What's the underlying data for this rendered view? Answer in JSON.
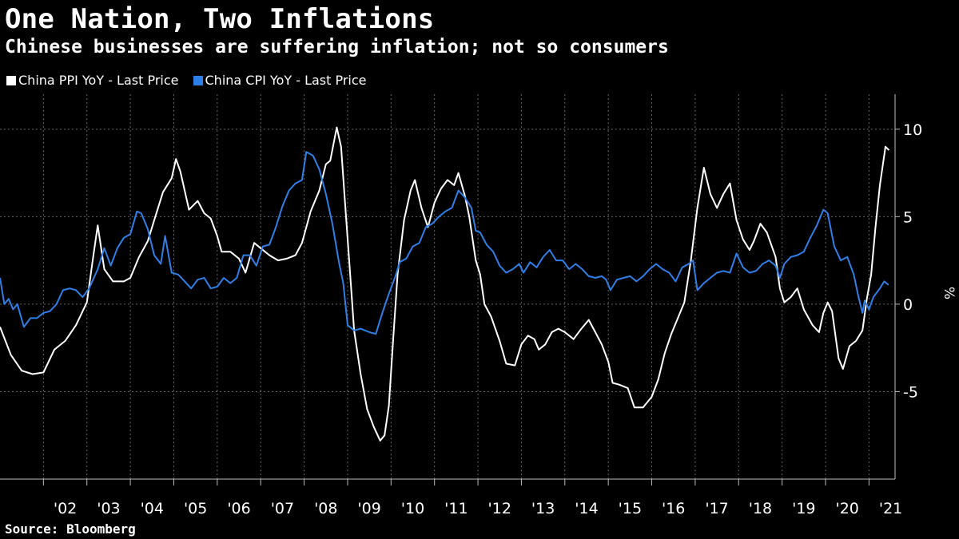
{
  "title": "One Nation, Two Inflations",
  "subtitle": "Chinese businesses are suffering inflation; not so consumers",
  "source": "Source: Bloomberg",
  "colors": {
    "background": "#000000",
    "ppi": "#ffffff",
    "cpi": "#2f7fe8",
    "grid": "#666666"
  },
  "chart_data": {
    "type": "line",
    "ylabel": "%",
    "ylim": [
      -10,
      12
    ],
    "yticks": [
      -5,
      0,
      5,
      10
    ],
    "xlim": [
      2001.0,
      2021.6
    ],
    "xtick_labels": [
      "'02",
      "'03",
      "'04",
      "'05",
      "'06",
      "'07",
      "'08",
      "'09",
      "'10",
      "'11",
      "'12",
      "'13",
      "'14",
      "'15",
      "'16",
      "'17",
      "'18",
      "'19",
      "'20",
      "'21"
    ],
    "grid": true,
    "legend_position": "top-left",
    "series": [
      {
        "name": "China PPI YoY - Last Price",
        "color": "#ffffff",
        "points": [
          [
            2001.0,
            -1.3
          ],
          [
            2001.25,
            -2.9
          ],
          [
            2001.5,
            -3.8
          ],
          [
            2001.75,
            -4.0
          ],
          [
            2002.0,
            -3.9
          ],
          [
            2002.25,
            -2.6
          ],
          [
            2002.5,
            -2.1
          ],
          [
            2002.75,
            -1.2
          ],
          [
            2003.0,
            0.1
          ],
          [
            2003.15,
            2.8
          ],
          [
            2003.25,
            4.5
          ],
          [
            2003.4,
            2.0
          ],
          [
            2003.6,
            1.3
          ],
          [
            2003.85,
            1.3
          ],
          [
            2004.0,
            1.5
          ],
          [
            2004.2,
            2.7
          ],
          [
            2004.4,
            3.6
          ],
          [
            2004.55,
            4.8
          ],
          [
            2004.75,
            6.4
          ],
          [
            2004.95,
            7.2
          ],
          [
            2005.05,
            8.3
          ],
          [
            2005.15,
            7.6
          ],
          [
            2005.35,
            5.4
          ],
          [
            2005.55,
            5.9
          ],
          [
            2005.7,
            5.2
          ],
          [
            2005.85,
            4.9
          ],
          [
            2006.0,
            3.9
          ],
          [
            2006.1,
            3.0
          ],
          [
            2006.3,
            3.0
          ],
          [
            2006.5,
            2.6
          ],
          [
            2006.65,
            1.8
          ],
          [
            2006.85,
            3.5
          ],
          [
            2007.0,
            3.2
          ],
          [
            2007.2,
            2.8
          ],
          [
            2007.4,
            2.5
          ],
          [
            2007.6,
            2.6
          ],
          [
            2007.8,
            2.8
          ],
          [
            2007.95,
            3.5
          ],
          [
            2008.15,
            5.3
          ],
          [
            2008.35,
            6.5
          ],
          [
            2008.5,
            8.0
          ],
          [
            2008.6,
            8.2
          ],
          [
            2008.75,
            10.1
          ],
          [
            2008.85,
            9.0
          ],
          [
            2008.95,
            5.5
          ],
          [
            2009.05,
            2.0
          ],
          [
            2009.15,
            -1.5
          ],
          [
            2009.3,
            -4.0
          ],
          [
            2009.45,
            -6.0
          ],
          [
            2009.6,
            -7.0
          ],
          [
            2009.75,
            -7.8
          ],
          [
            2009.85,
            -7.5
          ],
          [
            2009.95,
            -5.8
          ],
          [
            2010.05,
            -2.0
          ],
          [
            2010.15,
            1.7
          ],
          [
            2010.3,
            4.8
          ],
          [
            2010.45,
            6.5
          ],
          [
            2010.55,
            7.1
          ],
          [
            2010.7,
            5.5
          ],
          [
            2010.85,
            4.4
          ],
          [
            2011.0,
            5.8
          ],
          [
            2011.15,
            6.6
          ],
          [
            2011.3,
            7.1
          ],
          [
            2011.45,
            6.8
          ],
          [
            2011.55,
            7.5
          ],
          [
            2011.7,
            6.2
          ],
          [
            2011.8,
            5.0
          ],
          [
            2011.95,
            2.5
          ],
          [
            2012.05,
            1.7
          ],
          [
            2012.15,
            0.0
          ],
          [
            2012.3,
            -0.7
          ],
          [
            2012.5,
            -2.1
          ],
          [
            2012.65,
            -3.4
          ],
          [
            2012.85,
            -3.5
          ],
          [
            2013.0,
            -2.3
          ],
          [
            2013.15,
            -1.8
          ],
          [
            2013.3,
            -2.0
          ],
          [
            2013.4,
            -2.6
          ],
          [
            2013.55,
            -2.3
          ],
          [
            2013.7,
            -1.6
          ],
          [
            2013.85,
            -1.4
          ],
          [
            2014.0,
            -1.6
          ],
          [
            2014.2,
            -2.0
          ],
          [
            2014.35,
            -1.5
          ],
          [
            2014.55,
            -0.9
          ],
          [
            2014.7,
            -1.6
          ],
          [
            2014.85,
            -2.3
          ],
          [
            2015.0,
            -3.3
          ],
          [
            2015.1,
            -4.5
          ],
          [
            2015.25,
            -4.6
          ],
          [
            2015.45,
            -4.8
          ],
          [
            2015.6,
            -5.9
          ],
          [
            2015.8,
            -5.9
          ],
          [
            2016.0,
            -5.3
          ],
          [
            2016.15,
            -4.3
          ],
          [
            2016.3,
            -2.8
          ],
          [
            2016.45,
            -1.7
          ],
          [
            2016.6,
            -0.8
          ],
          [
            2016.75,
            0.1
          ],
          [
            2016.9,
            2.5
          ],
          [
            2017.05,
            5.5
          ],
          [
            2017.2,
            7.8
          ],
          [
            2017.35,
            6.3
          ],
          [
            2017.5,
            5.5
          ],
          [
            2017.65,
            6.3
          ],
          [
            2017.8,
            6.9
          ],
          [
            2017.95,
            4.8
          ],
          [
            2018.1,
            3.7
          ],
          [
            2018.25,
            3.1
          ],
          [
            2018.35,
            3.6
          ],
          [
            2018.5,
            4.6
          ],
          [
            2018.65,
            4.1
          ],
          [
            2018.85,
            2.7
          ],
          [
            2018.95,
            0.9
          ],
          [
            2019.05,
            0.1
          ],
          [
            2019.2,
            0.4
          ],
          [
            2019.35,
            0.9
          ],
          [
            2019.5,
            -0.3
          ],
          [
            2019.7,
            -1.2
          ],
          [
            2019.85,
            -1.6
          ],
          [
            2019.95,
            -0.5
          ],
          [
            2020.05,
            0.1
          ],
          [
            2020.15,
            -0.4
          ],
          [
            2020.3,
            -3.1
          ],
          [
            2020.4,
            -3.7
          ],
          [
            2020.55,
            -2.4
          ],
          [
            2020.7,
            -2.1
          ],
          [
            2020.85,
            -1.5
          ],
          [
            2020.95,
            0.3
          ],
          [
            2021.05,
            1.7
          ],
          [
            2021.15,
            4.4
          ],
          [
            2021.25,
            6.8
          ],
          [
            2021.38,
            9.0
          ],
          [
            2021.46,
            8.8
          ]
        ]
      },
      {
        "name": "China CPI YoY - Last Price",
        "color": "#2f7fe8",
        "points": [
          [
            2001.0,
            1.5
          ],
          [
            2001.1,
            0.0
          ],
          [
            2001.2,
            0.3
          ],
          [
            2001.3,
            -0.3
          ],
          [
            2001.4,
            0.0
          ],
          [
            2001.55,
            -1.3
          ],
          [
            2001.7,
            -0.8
          ],
          [
            2001.85,
            -0.8
          ],
          [
            2002.0,
            -0.5
          ],
          [
            2002.15,
            -0.4
          ],
          [
            2002.3,
            0.0
          ],
          [
            2002.45,
            0.8
          ],
          [
            2002.6,
            0.9
          ],
          [
            2002.75,
            0.8
          ],
          [
            2002.9,
            0.4
          ],
          [
            2003.05,
            0.9
          ],
          [
            2003.25,
            2.0
          ],
          [
            2003.4,
            3.2
          ],
          [
            2003.55,
            2.2
          ],
          [
            2003.7,
            3.2
          ],
          [
            2003.85,
            3.8
          ],
          [
            2004.0,
            4.0
          ],
          [
            2004.15,
            5.3
          ],
          [
            2004.25,
            5.2
          ],
          [
            2004.4,
            4.3
          ],
          [
            2004.55,
            2.8
          ],
          [
            2004.7,
            2.3
          ],
          [
            2004.8,
            3.9
          ],
          [
            2004.95,
            1.8
          ],
          [
            2005.1,
            1.7
          ],
          [
            2005.25,
            1.3
          ],
          [
            2005.4,
            0.9
          ],
          [
            2005.55,
            1.4
          ],
          [
            2005.7,
            1.5
          ],
          [
            2005.85,
            0.9
          ],
          [
            2006.0,
            1.0
          ],
          [
            2006.15,
            1.5
          ],
          [
            2006.3,
            1.2
          ],
          [
            2006.45,
            1.5
          ],
          [
            2006.6,
            2.8
          ],
          [
            2006.75,
            2.8
          ],
          [
            2006.9,
            2.2
          ],
          [
            2007.05,
            3.3
          ],
          [
            2007.2,
            3.4
          ],
          [
            2007.35,
            4.4
          ],
          [
            2007.5,
            5.6
          ],
          [
            2007.65,
            6.5
          ],
          [
            2007.8,
            6.9
          ],
          [
            2007.95,
            7.1
          ],
          [
            2008.05,
            8.7
          ],
          [
            2008.2,
            8.5
          ],
          [
            2008.35,
            7.7
          ],
          [
            2008.5,
            6.3
          ],
          [
            2008.65,
            4.6
          ],
          [
            2008.8,
            2.4
          ],
          [
            2008.9,
            1.2
          ],
          [
            2009.0,
            -1.2
          ],
          [
            2009.15,
            -1.5
          ],
          [
            2009.3,
            -1.4
          ],
          [
            2009.5,
            -1.6
          ],
          [
            2009.65,
            -1.7
          ],
          [
            2009.8,
            -0.5
          ],
          [
            2009.95,
            0.6
          ],
          [
            2010.1,
            1.6
          ],
          [
            2010.2,
            2.4
          ],
          [
            2010.35,
            2.6
          ],
          [
            2010.5,
            3.3
          ],
          [
            2010.65,
            3.5
          ],
          [
            2010.8,
            4.4
          ],
          [
            2010.95,
            4.6
          ],
          [
            2011.1,
            5.0
          ],
          [
            2011.25,
            5.3
          ],
          [
            2011.4,
            5.5
          ],
          [
            2011.55,
            6.5
          ],
          [
            2011.7,
            6.1
          ],
          [
            2011.85,
            5.5
          ],
          [
            2011.95,
            4.2
          ],
          [
            2012.05,
            4.1
          ],
          [
            2012.2,
            3.4
          ],
          [
            2012.35,
            3.0
          ],
          [
            2012.5,
            2.2
          ],
          [
            2012.65,
            1.8
          ],
          [
            2012.8,
            2.0
          ],
          [
            2012.95,
            2.3
          ],
          [
            2013.05,
            1.8
          ],
          [
            2013.2,
            2.4
          ],
          [
            2013.35,
            2.1
          ],
          [
            2013.5,
            2.7
          ],
          [
            2013.65,
            3.1
          ],
          [
            2013.8,
            2.5
          ],
          [
            2013.95,
            2.5
          ],
          [
            2014.1,
            2.0
          ],
          [
            2014.25,
            2.3
          ],
          [
            2014.4,
            2.0
          ],
          [
            2014.55,
            1.6
          ],
          [
            2014.7,
            1.5
          ],
          [
            2014.85,
            1.6
          ],
          [
            2014.95,
            1.4
          ],
          [
            2015.05,
            0.8
          ],
          [
            2015.2,
            1.4
          ],
          [
            2015.35,
            1.5
          ],
          [
            2015.5,
            1.6
          ],
          [
            2015.65,
            1.3
          ],
          [
            2015.8,
            1.6
          ],
          [
            2015.95,
            2.0
          ],
          [
            2016.1,
            2.3
          ],
          [
            2016.25,
            2.0
          ],
          [
            2016.4,
            1.8
          ],
          [
            2016.55,
            1.3
          ],
          [
            2016.7,
            2.1
          ],
          [
            2016.85,
            2.3
          ],
          [
            2016.95,
            2.5
          ],
          [
            2017.05,
            0.8
          ],
          [
            2017.2,
            1.2
          ],
          [
            2017.35,
            1.5
          ],
          [
            2017.5,
            1.8
          ],
          [
            2017.65,
            1.9
          ],
          [
            2017.8,
            1.8
          ],
          [
            2017.95,
            2.9
          ],
          [
            2018.1,
            2.1
          ],
          [
            2018.25,
            1.8
          ],
          [
            2018.4,
            1.9
          ],
          [
            2018.55,
            2.3
          ],
          [
            2018.7,
            2.5
          ],
          [
            2018.85,
            2.2
          ],
          [
            2018.95,
            1.5
          ],
          [
            2019.05,
            2.3
          ],
          [
            2019.2,
            2.7
          ],
          [
            2019.35,
            2.8
          ],
          [
            2019.5,
            3.0
          ],
          [
            2019.65,
            3.8
          ],
          [
            2019.8,
            4.5
          ],
          [
            2019.95,
            5.4
          ],
          [
            2020.05,
            5.2
          ],
          [
            2020.2,
            3.3
          ],
          [
            2020.35,
            2.5
          ],
          [
            2020.5,
            2.7
          ],
          [
            2020.65,
            1.7
          ],
          [
            2020.75,
            0.5
          ],
          [
            2020.85,
            -0.5
          ],
          [
            2020.9,
            0.2
          ],
          [
            2021.0,
            -0.3
          ],
          [
            2021.1,
            0.4
          ],
          [
            2021.25,
            0.9
          ],
          [
            2021.35,
            1.3
          ],
          [
            2021.45,
            1.1
          ]
        ]
      }
    ]
  }
}
